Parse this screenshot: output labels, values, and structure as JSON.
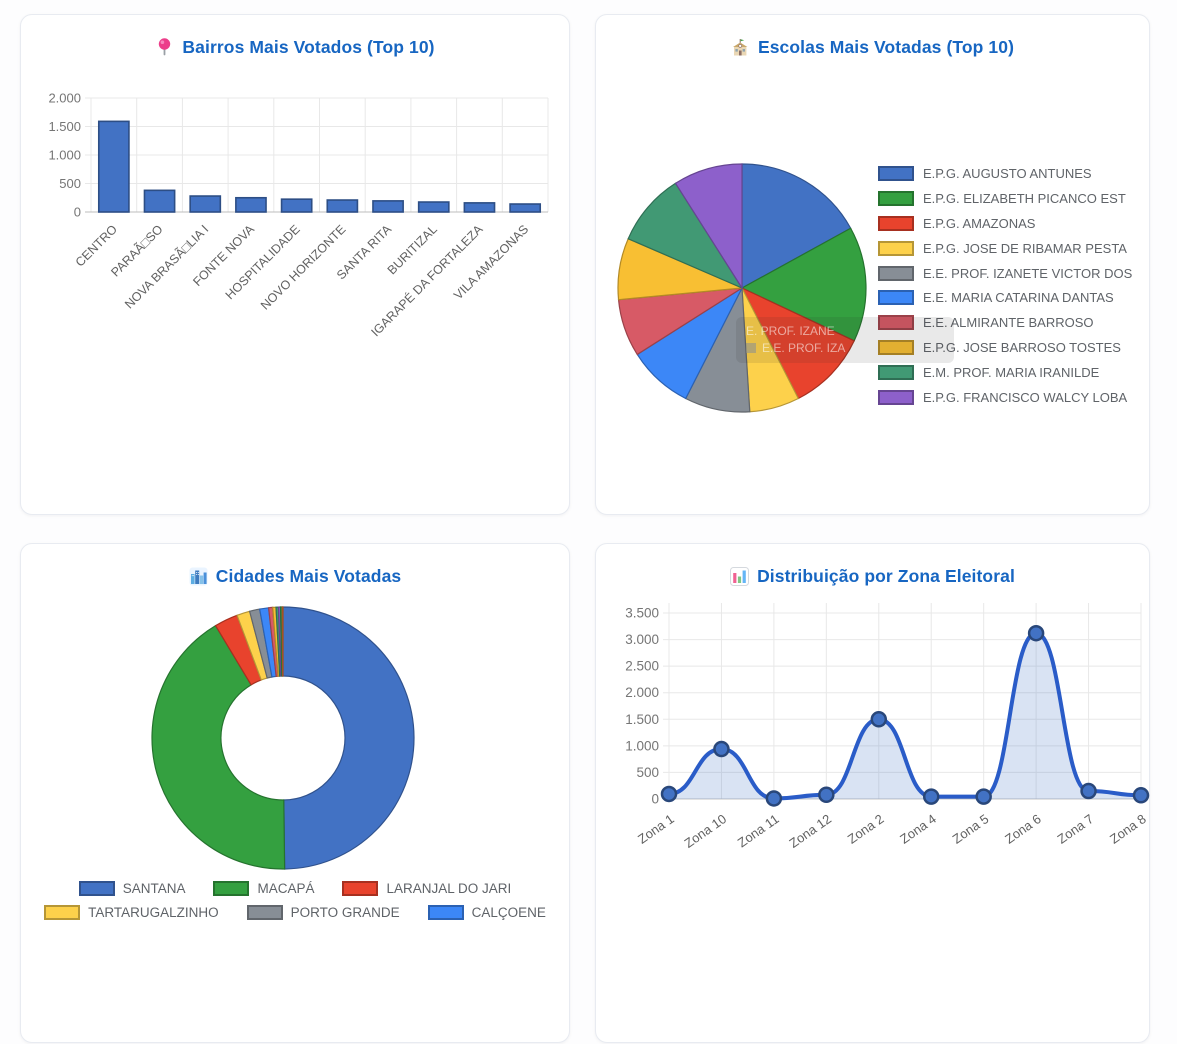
{
  "page": {
    "title_color": "#1766C2",
    "axis_label_color": "#757575",
    "category_label_color": "#616161",
    "legend_text_color": "#5f6368"
  },
  "chart_data": [
    {
      "type": "bar",
      "title": "Bairros Mais Votados (Top 10)",
      "icon": "pushpin-icon",
      "categories": [
        "CENTRO",
        "PARAÃ□SO",
        "NOVA BRASÃ□LIA I",
        "FONTE NOVA",
        "HOSPITALIDADE",
        "NOVO HORIZONTE",
        "SANTA RITA",
        "BURITIZAL",
        "IGARAPÉ DA FORTALEZA",
        "VILA AMAZONAS"
      ],
      "values": [
        1590,
        380,
        280,
        250,
        225,
        210,
        195,
        175,
        160,
        140
      ],
      "bar_color": "#4272C4",
      "ylim": [
        0,
        2000
      ],
      "yticks": [
        {
          "value": 0,
          "label": "0"
        },
        {
          "value": 500,
          "label": "500"
        },
        {
          "value": 1000,
          "label": "1.000"
        },
        {
          "value": 1500,
          "label": "1.500"
        },
        {
          "value": 2000,
          "label": "2.000"
        }
      ],
      "grid": true
    },
    {
      "type": "pie",
      "title": "Escolas Mais Votadas (Top 10)",
      "icon": "school-icon",
      "labels": [
        "E.P.G. AUGUSTO ANTUNES",
        "E.P.G. ELIZABETH PICANCO EST",
        "E.P.G. AMAZONAS",
        "E.P.G. JOSE DE RIBAMAR PESTA",
        "E.E. PROF. IZANETE VICTOR DOS",
        "E.E. MARIA CATARINA DANTAS",
        "E.E. ALMIRANTE BARROSO",
        "E.P.G. JOSE BARROSO TOSTES",
        "E.M. PROF. MARIA IRANILDE",
        "E.P.G. FRANCISCO WALCY LOBA"
      ],
      "values": [
        17,
        15,
        10.5,
        6.5,
        8.5,
        8.5,
        7.5,
        8,
        9.5,
        9
      ],
      "colors": [
        "#4272C4",
        "#34A040",
        "#E8432D",
        "#FDD14B",
        "#878E96",
        "#3C87F7",
        "#D75A66",
        "#F8BF33",
        "#419974",
        "#8D60CB"
      ],
      "legend_position": "right",
      "ghost_tooltip": {
        "line1": "E. PROF. IZANE",
        "line2": "E.E. PROF. IZA"
      }
    },
    {
      "type": "doughnut",
      "title": "Cidades Mais Votadas",
      "icon": "cityscape-icon",
      "labels": [
        "SANTANA",
        "MACAPÁ",
        "LARANJAL DO JARI",
        "TARTARUGALZINHO",
        "PORTO GRANDE",
        "CALÇOENE",
        "",
        "",
        "",
        "",
        "",
        ""
      ],
      "values": [
        49.8,
        41.6,
        2.9,
        1.6,
        1.25,
        1.1,
        0.5,
        0.4,
        0.3,
        0.25,
        0.2,
        0.1
      ],
      "colors": [
        "#4272C4",
        "#34A040",
        "#E8432D",
        "#FDD14B",
        "#878E96",
        "#3C87F7",
        "#D75A66",
        "#F8BF33",
        "#419974",
        "#8D60CB",
        "#2E9E4F",
        "#E8712C"
      ],
      "legend_position": "bottom"
    },
    {
      "type": "line",
      "title": "Distribuição por Zona Eleitoral",
      "icon": "bar-chart-icon",
      "categories": [
        "Zona 1",
        "Zona 10",
        "Zona 11",
        "Zona 12",
        "Zona 2",
        "Zona 4",
        "Zona 5",
        "Zona 6",
        "Zona 7",
        "Zona 8"
      ],
      "values": [
        95,
        940,
        10,
        80,
        1500,
        45,
        45,
        3120,
        150,
        70
      ],
      "line_color": "#2A5CC8",
      "point_color": "#4272C4",
      "area_fill": "rgba(66,114,196,0.20)",
      "ylim": [
        0,
        3500
      ],
      "yticks": [
        {
          "value": 0,
          "label": "0"
        },
        {
          "value": 500,
          "label": "500"
        },
        {
          "value": 1000,
          "label": "1.000"
        },
        {
          "value": 1500,
          "label": "1.500"
        },
        {
          "value": 2000,
          "label": "2.000"
        },
        {
          "value": 2500,
          "label": "2.500"
        },
        {
          "value": 3000,
          "label": "3.000"
        },
        {
          "value": 3500,
          "label": "3.500"
        }
      ],
      "grid": true
    }
  ]
}
